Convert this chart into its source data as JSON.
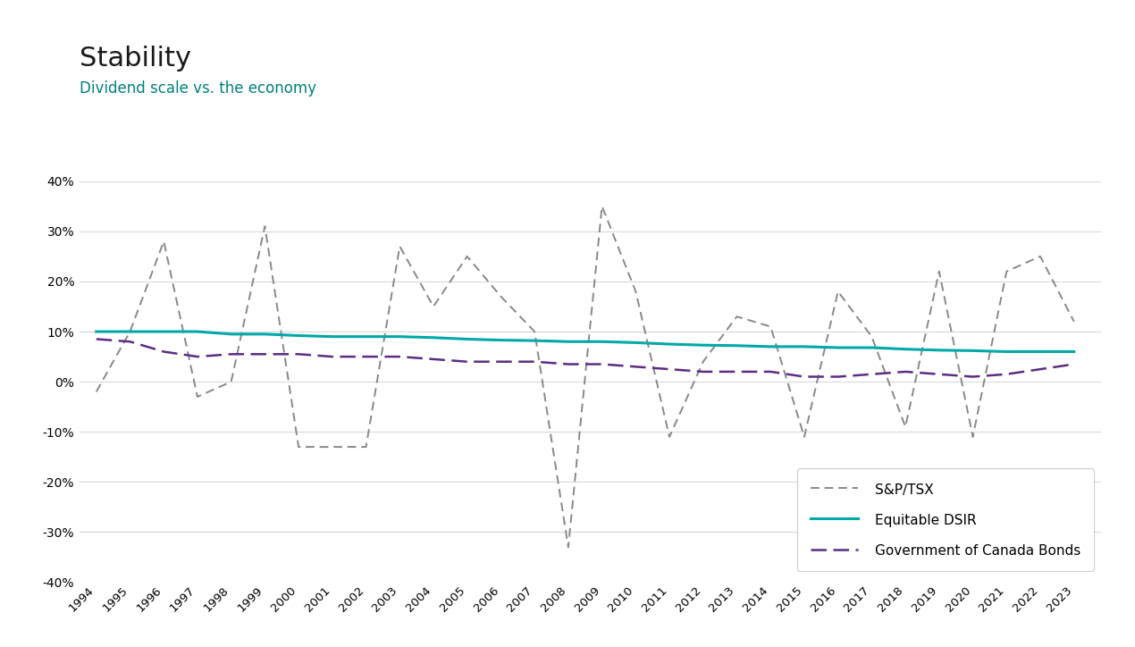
{
  "title": "Stability",
  "subtitle": "Dividend scale vs. the economy",
  "title_color": "#1a1a1a",
  "subtitle_color": "#008080",
  "years": [
    1994,
    1995,
    1996,
    1997,
    1998,
    1999,
    2000,
    2001,
    2002,
    2003,
    2004,
    2005,
    2006,
    2007,
    2008,
    2009,
    2010,
    2011,
    2012,
    2013,
    2014,
    2015,
    2016,
    2017,
    2018,
    2019,
    2020,
    2021,
    2022,
    2023
  ],
  "tsx": [
    -2,
    10,
    28,
    -3,
    0,
    31,
    -13,
    -13,
    -13,
    27,
    15,
    25,
    17,
    10,
    -33,
    35,
    18,
    -11,
    4,
    13,
    11,
    -11,
    18,
    9,
    -9,
    22,
    -11,
    22,
    25,
    12
  ],
  "dsir": [
    10.0,
    10.0,
    10.0,
    10.0,
    9.5,
    9.5,
    9.2,
    9.0,
    9.0,
    9.0,
    8.8,
    8.5,
    8.3,
    8.2,
    8.0,
    8.0,
    7.8,
    7.5,
    7.3,
    7.2,
    7.0,
    7.0,
    6.8,
    6.8,
    6.5,
    6.3,
    6.2,
    6.0,
    6.0,
    6.0
  ],
  "bonds": [
    8.5,
    8.0,
    6.0,
    5.0,
    5.5,
    5.5,
    5.5,
    5.0,
    5.0,
    5.0,
    4.5,
    4.0,
    4.0,
    4.0,
    3.5,
    3.5,
    3.0,
    2.5,
    2.0,
    2.0,
    2.0,
    1.0,
    1.0,
    1.5,
    2.0,
    1.5,
    1.0,
    1.5,
    2.5,
    3.5
  ],
  "tsx_color": "#888888",
  "dsir_color": "#00a8a8",
  "bonds_color": "#5c2d82",
  "background_color": "#ffffff",
  "grid_color": "#d8d8d8",
  "ylim": [
    -40,
    40
  ],
  "yticks": [
    -40,
    -30,
    -20,
    -10,
    0,
    10,
    20,
    30,
    40
  ],
  "legend_labels": [
    "S&P/TSX",
    "Equitable DSIR",
    "Government of Canada Bonds"
  ]
}
